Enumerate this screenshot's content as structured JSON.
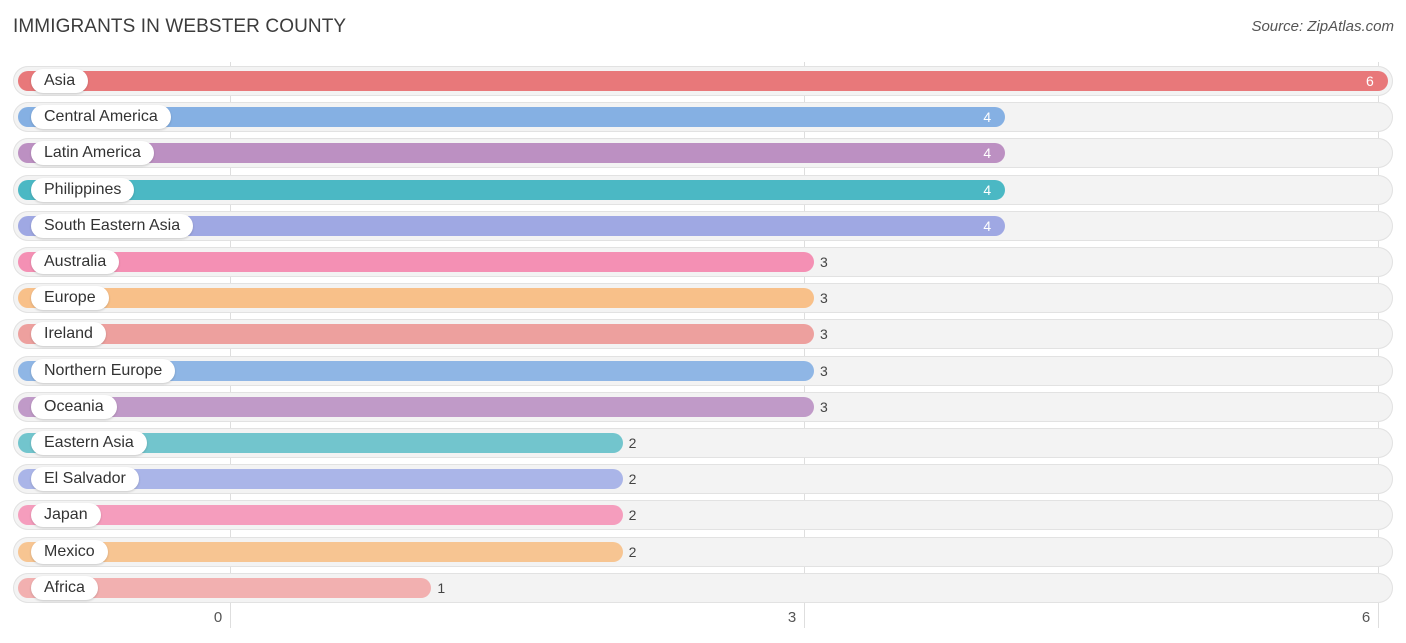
{
  "title": "IMMIGRANTS IN WEBSTER COUNTY",
  "source": "Source: ZipAtlas.com",
  "chart_data": {
    "type": "bar",
    "orientation": "horizontal",
    "title": "IMMIGRANTS IN WEBSTER COUNTY",
    "xlabel": "",
    "ylabel": "",
    "xlim": [
      0,
      6
    ],
    "xticks": [
      0,
      3,
      6
    ],
    "grid": true,
    "categories": [
      "Asia",
      "Central America",
      "Latin America",
      "Philippines",
      "South Eastern Asia",
      "Australia",
      "Europe",
      "Ireland",
      "Northern Europe",
      "Oceania",
      "Eastern Asia",
      "El Salvador",
      "Japan",
      "Mexico",
      "Africa"
    ],
    "values": [
      6,
      4,
      4,
      4,
      4,
      3,
      3,
      3,
      3,
      3,
      2,
      2,
      2,
      2,
      1
    ],
    "colors": [
      "#e8787a",
      "#85b0e3",
      "#bc90c2",
      "#4bb8c4",
      "#9fa8e3",
      "#f490b4",
      "#f8c089",
      "#eda09e",
      "#8fb6e5",
      "#c09ac8",
      "#72c5cd",
      "#aab5e8",
      "#f59dbd",
      "#f7c592",
      "#f2b0b0"
    ]
  }
}
